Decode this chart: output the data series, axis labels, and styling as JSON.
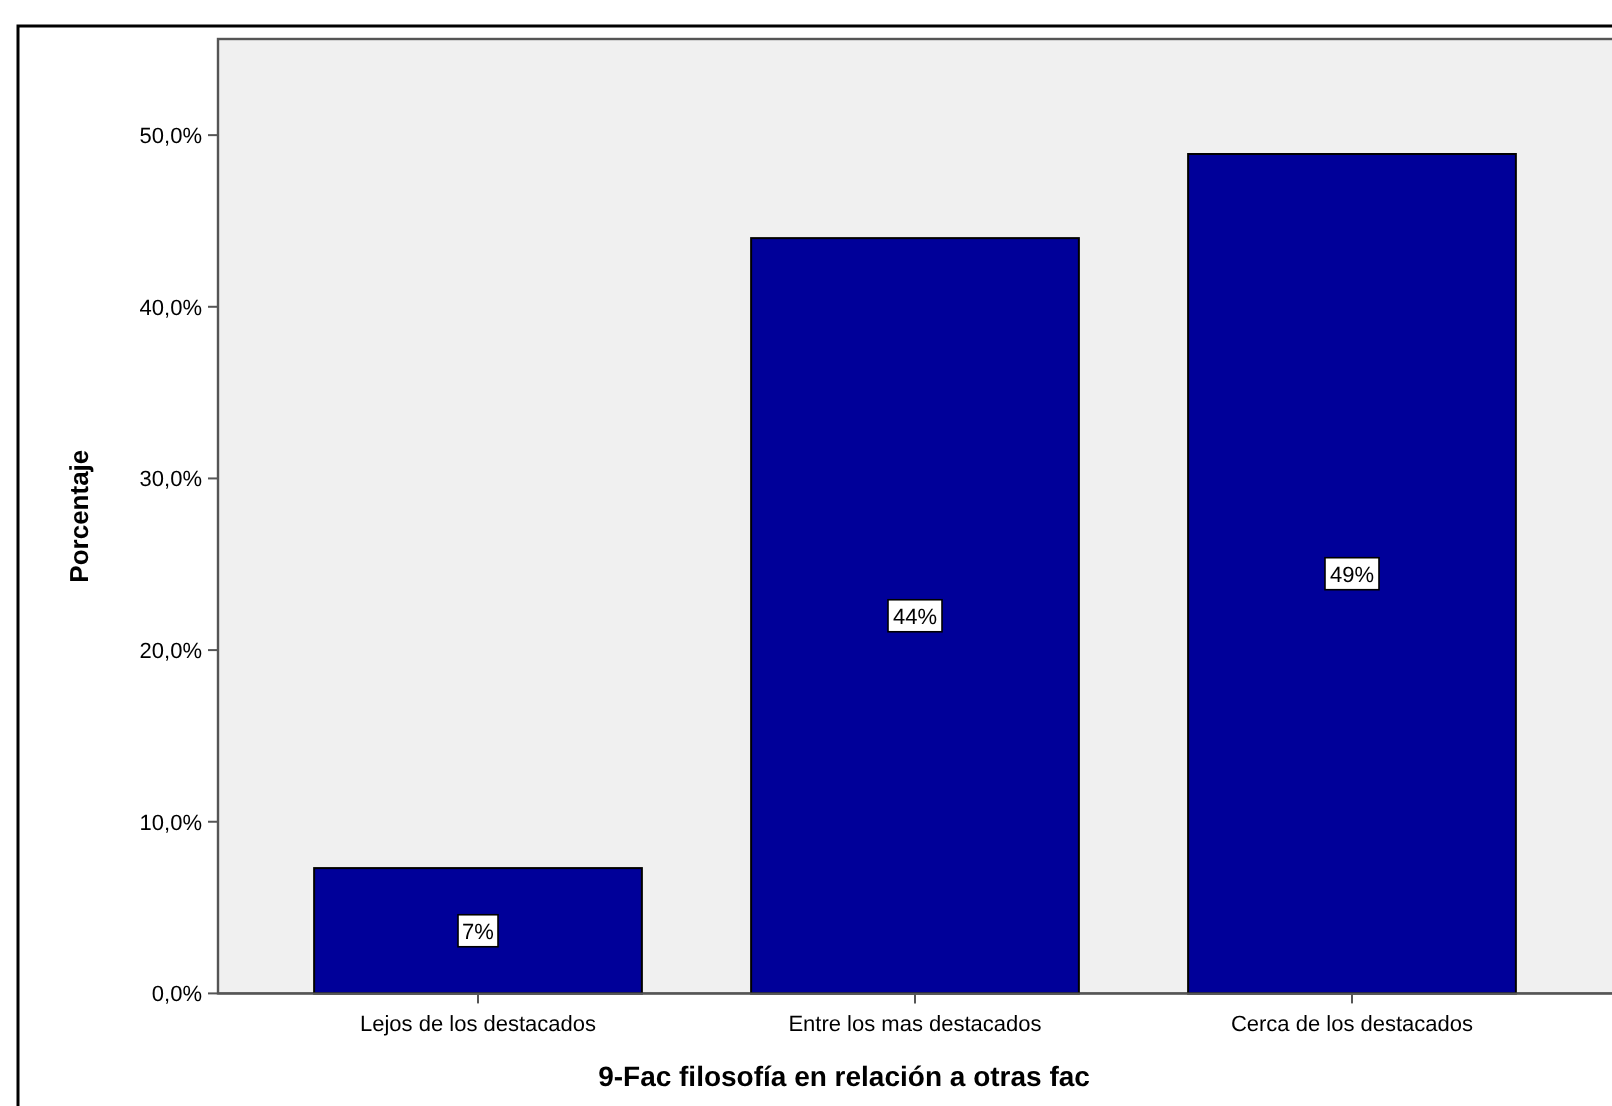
{
  "chart_data": {
    "type": "bar",
    "xlabel": "9-Fac filosofía en relación a otras fac",
    "ylabel": "Porcentaje",
    "categories": [
      "Lejos de los destacados",
      "Entre los mas destacados",
      "Cerca de los destacados"
    ],
    "values": [
      7.3,
      44.0,
      48.9
    ],
    "color": "#000099",
    "value_labels": [
      "7%",
      "44%",
      "49%"
    ],
    "ylim": [
      0,
      55.6
    ],
    "yticks": [
      {
        "value": 0,
        "label": "0,0%"
      },
      {
        "value": 10,
        "label": "10,0%"
      },
      {
        "value": 20,
        "label": "20,0%"
      },
      {
        "value": 30,
        "label": "30,0%"
      },
      {
        "value": 40,
        "label": "40,0%"
      },
      {
        "value": 50,
        "label": "50,0%"
      }
    ],
    "grid": false
  }
}
